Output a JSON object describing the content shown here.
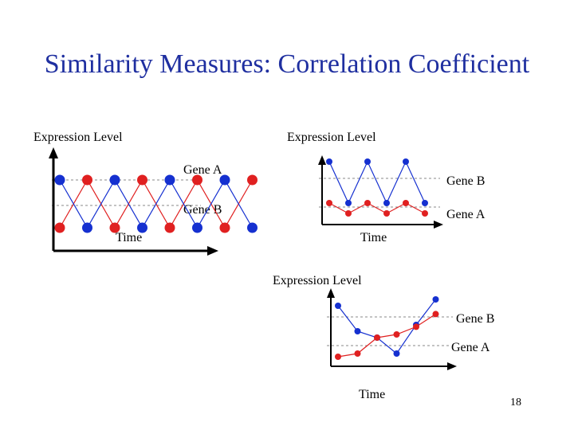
{
  "slide": {
    "title": "Similarity Measures: Correlation Coefficient",
    "page_number": "18"
  },
  "colors": {
    "title": "#1f2fa0",
    "gene_a": "#e02020",
    "gene_b": "#1530d0",
    "axis": "#000000",
    "reference_line": "#888888"
  },
  "chart_data": [
    {
      "type": "line",
      "description_visible": false,
      "ylabel": "Expression Level",
      "xlabel": "Time",
      "series": [
        {
          "name": "Gene A",
          "color": "#e02020",
          "values": [
            0,
            1,
            0,
            1,
            0,
            1,
            0,
            1
          ]
        },
        {
          "name": "Gene B",
          "color": "#1530d0",
          "values": [
            1,
            0,
            1,
            0,
            1,
            0,
            1,
            0
          ]
        }
      ]
    },
    {
      "type": "line",
      "ylabel": "Expression Level",
      "xlabel": "Time",
      "series": [
        {
          "name": "Gene B",
          "color": "#1530d0",
          "values": [
            1.0,
            0.2,
            1.0,
            0.2,
            1.0,
            0.2
          ]
        },
        {
          "name": "Gene A",
          "color": "#e02020",
          "values": [
            0.2,
            0.0,
            0.2,
            0.0,
            0.2,
            0.0
          ]
        }
      ]
    },
    {
      "type": "line",
      "ylabel": "Expression Level",
      "xlabel": "Time",
      "series": [
        {
          "name": "Gene B",
          "color": "#1530d0",
          "values": [
            0.85,
            0.45,
            0.35,
            0.1,
            0.55,
            0.95
          ]
        },
        {
          "name": "Gene A",
          "color": "#e02020",
          "values": [
            0.05,
            0.1,
            0.35,
            0.4,
            0.52,
            0.72
          ]
        }
      ]
    }
  ]
}
